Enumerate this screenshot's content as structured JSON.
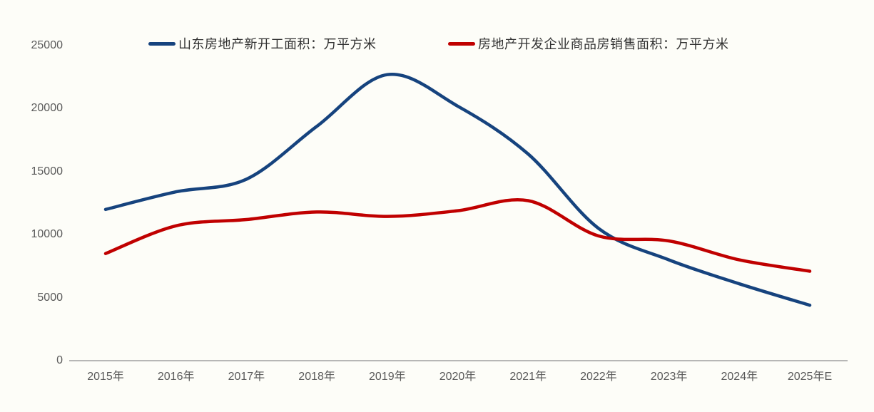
{
  "chart_data": {
    "type": "line",
    "title": "",
    "xlabel": "",
    "ylabel": "",
    "categories": [
      "2015年",
      "2016年",
      "2017年",
      "2018年",
      "2019年",
      "2020年",
      "2021年",
      "2022年",
      "2023年",
      "2024年",
      "2025年E"
    ],
    "series": [
      {
        "name": "山东房地产新开工面积：万平方米",
        "color": "#16437E",
        "values": [
          12000,
          13400,
          14400,
          18600,
          22700,
          20200,
          16400,
          10500,
          8000,
          6100,
          4400
        ]
      },
      {
        "name": "房地产开发企业商品房销售面积：万平方米",
        "color": "#C00000",
        "values": [
          8500,
          10700,
          11200,
          11800,
          11450,
          11900,
          12700,
          9900,
          9500,
          8000,
          7100
        ]
      }
    ],
    "yticks": [
      0,
      5000,
      10000,
      15000,
      20000,
      25000
    ],
    "ytick_labels": [
      "0",
      "5000",
      "10000",
      "15000",
      "20000",
      "25000"
    ],
    "ylim": [
      0,
      25000
    ],
    "grid": false,
    "legend_position": "top",
    "axis_line_color": "#ADADAD"
  }
}
